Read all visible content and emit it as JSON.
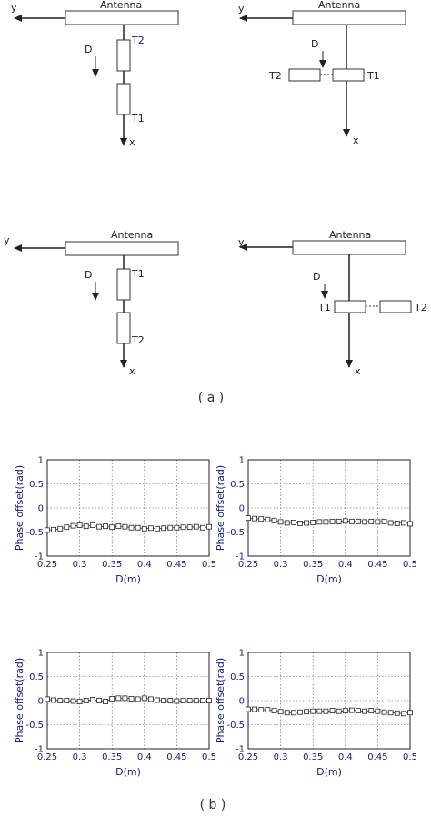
{
  "caption_a": "( a )",
  "caption_b": "( b )",
  "diagrams": [
    {
      "antenna_label": "Antenna",
      "y_label": "y",
      "x_label": "x",
      "d_label": "D",
      "first_tag": "T2",
      "second_tag": "T1",
      "layout": "vertical"
    },
    {
      "antenna_label": "Antenna",
      "y_label": "y",
      "x_label": "x",
      "d_label": "D",
      "first_tag": "T2",
      "second_tag": "T1",
      "layout": "horizontal"
    },
    {
      "antenna_label": "Antenna",
      "y_label": "y",
      "x_label": "x",
      "d_label": "D",
      "first_tag": "T1",
      "second_tag": "T2",
      "layout": "vertical"
    },
    {
      "antenna_label": "Antenna",
      "y_label": "y",
      "x_label": "x",
      "d_label": "D",
      "first_tag": "T1",
      "second_tag": "T2",
      "layout": "horizontal"
    }
  ],
  "chart_data": [
    {
      "type": "scatter",
      "title": "",
      "xlabel": "D(m)",
      "ylabel": "Phase offset(rad)",
      "xlim": [
        0.25,
        0.5
      ],
      "ylim": [
        -1,
        1
      ],
      "grid": true,
      "marker": "square",
      "xticks": [
        "0.25",
        "0.3",
        "0.35",
        "0.4",
        "0.45",
        "0.5"
      ],
      "yticks": [
        "1",
        "0.5",
        "0",
        "-0.5",
        "-1"
      ],
      "series": [
        {
          "x": [
            0.25,
            0.26,
            0.27,
            0.28,
            0.29,
            0.3,
            0.31,
            0.32,
            0.33,
            0.34,
            0.35,
            0.36,
            0.37,
            0.38,
            0.39,
            0.4,
            0.41,
            0.42,
            0.43,
            0.44,
            0.45,
            0.46,
            0.47,
            0.48,
            0.49,
            0.5
          ],
          "y": [
            -0.46,
            -0.45,
            -0.43,
            -0.4,
            -0.37,
            -0.36,
            -0.38,
            -0.36,
            -0.39,
            -0.38,
            -0.4,
            -0.38,
            -0.39,
            -0.41,
            -0.41,
            -0.43,
            -0.42,
            -0.43,
            -0.42,
            -0.41,
            -0.41,
            -0.4,
            -0.4,
            -0.39,
            -0.41,
            -0.39
          ]
        }
      ]
    },
    {
      "type": "scatter",
      "title": "",
      "xlabel": "D(m)",
      "ylabel": "Phase offset(rad)",
      "xlim": [
        0.25,
        0.5
      ],
      "ylim": [
        -1,
        1
      ],
      "grid": true,
      "marker": "square",
      "xticks": [
        "0.25",
        "0.3",
        "0.35",
        "0.4",
        "0.45",
        "0.5"
      ],
      "yticks": [
        "1",
        "0.5",
        "0",
        "-0.5",
        "-1"
      ],
      "series": [
        {
          "x": [
            0.25,
            0.26,
            0.27,
            0.28,
            0.29,
            0.3,
            0.31,
            0.32,
            0.33,
            0.34,
            0.35,
            0.36,
            0.37,
            0.38,
            0.39,
            0.4,
            0.41,
            0.42,
            0.43,
            0.44,
            0.45,
            0.46,
            0.47,
            0.48,
            0.49,
            0.5
          ],
          "y": [
            -0.21,
            -0.22,
            -0.23,
            -0.24,
            -0.26,
            -0.29,
            -0.31,
            -0.3,
            -0.32,
            -0.31,
            -0.3,
            -0.29,
            -0.29,
            -0.28,
            -0.28,
            -0.27,
            -0.28,
            -0.28,
            -0.29,
            -0.28,
            -0.29,
            -0.28,
            -0.31,
            -0.32,
            -0.31,
            -0.33
          ]
        }
      ]
    },
    {
      "type": "scatter",
      "title": "",
      "xlabel": "D(m)",
      "ylabel": "Phase offset(rad)",
      "xlim": [
        0.25,
        0.5
      ],
      "ylim": [
        -1,
        1
      ],
      "grid": true,
      "marker": "square",
      "xticks": [
        "0.25",
        "0.3",
        "0.35",
        "0.4",
        "0.45",
        "0.5"
      ],
      "yticks": [
        "1",
        "0.5",
        "0",
        "-0.5",
        "-1"
      ],
      "series": [
        {
          "x": [
            0.25,
            0.26,
            0.27,
            0.28,
            0.29,
            0.3,
            0.31,
            0.32,
            0.33,
            0.34,
            0.35,
            0.36,
            0.37,
            0.38,
            0.39,
            0.4,
            0.41,
            0.42,
            0.43,
            0.44,
            0.45,
            0.46,
            0.47,
            0.48,
            0.49,
            0.5
          ],
          "y": [
            0.03,
            0.01,
            0.0,
            0.0,
            -0.01,
            -0.02,
            0.0,
            0.02,
            0.0,
            -0.02,
            0.04,
            0.05,
            0.05,
            0.04,
            0.03,
            0.05,
            0.03,
            0.01,
            0.0,
            0.0,
            -0.01,
            0.0,
            0.0,
            0.0,
            0.0,
            0.0
          ]
        }
      ]
    },
    {
      "type": "scatter",
      "title": "",
      "xlabel": "D(m)",
      "ylabel": "Phase offset(rad)",
      "xlim": [
        0.25,
        0.5
      ],
      "ylim": [
        -1,
        1
      ],
      "grid": true,
      "marker": "square",
      "xticks": [
        "0.25",
        "0.3",
        "0.35",
        "0.4",
        "0.45",
        "0.5"
      ],
      "yticks": [
        "1",
        "0.5",
        "0",
        "-0.5",
        "-1"
      ],
      "series": [
        {
          "x": [
            0.25,
            0.26,
            0.27,
            0.28,
            0.29,
            0.3,
            0.31,
            0.32,
            0.33,
            0.34,
            0.35,
            0.36,
            0.37,
            0.38,
            0.39,
            0.4,
            0.41,
            0.42,
            0.43,
            0.44,
            0.45,
            0.46,
            0.47,
            0.48,
            0.49,
            0.5
          ],
          "y": [
            -0.18,
            -0.18,
            -0.19,
            -0.19,
            -0.21,
            -0.23,
            -0.25,
            -0.25,
            -0.24,
            -0.23,
            -0.22,
            -0.22,
            -0.22,
            -0.21,
            -0.22,
            -0.21,
            -0.2,
            -0.21,
            -0.22,
            -0.21,
            -0.22,
            -0.24,
            -0.25,
            -0.26,
            -0.27,
            -0.25
          ]
        }
      ]
    }
  ]
}
